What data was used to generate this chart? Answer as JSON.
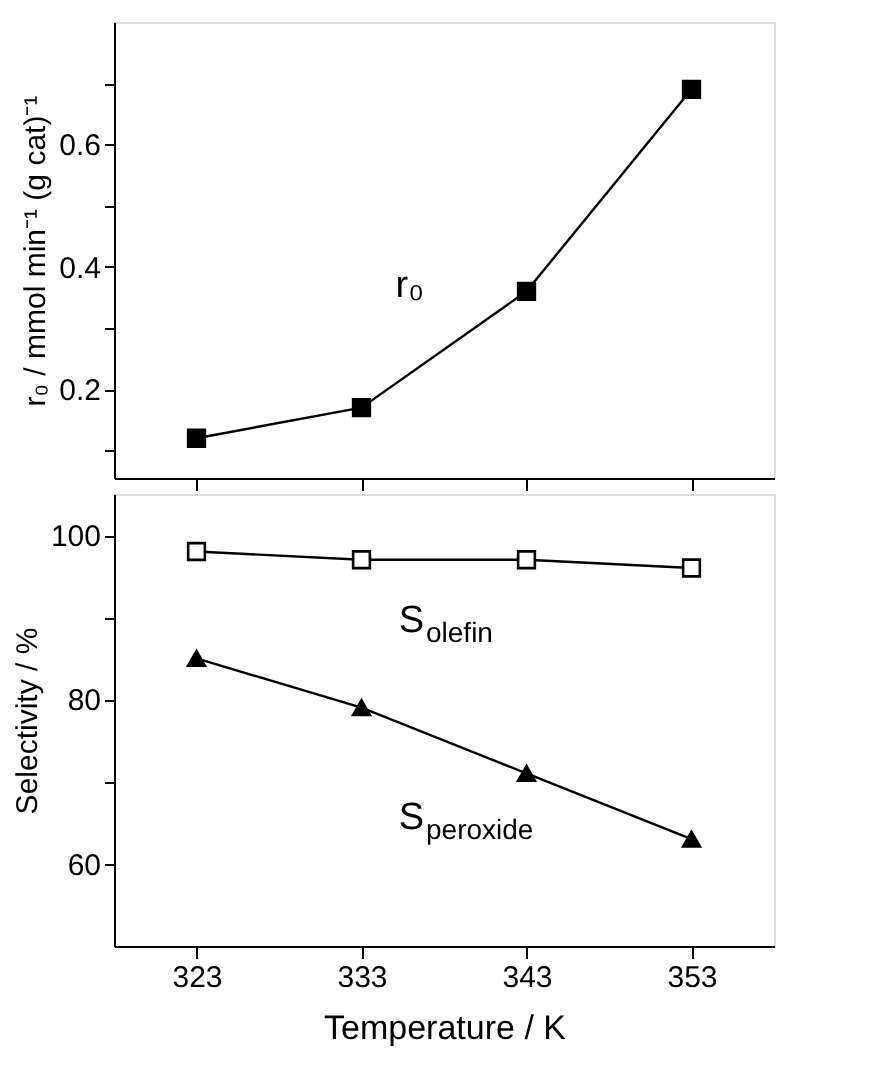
{
  "chart_data": [
    {
      "type": "line",
      "x": [
        323,
        333,
        343,
        353
      ],
      "ylabel": "r₀ / mmol min⁻¹ (g cat)⁻¹",
      "xlim": [
        318,
        358
      ],
      "ylim": [
        0.055,
        0.8
      ],
      "xticks": [
        323,
        333,
        343,
        353
      ],
      "yticks": [
        {
          "value": 0.1,
          "label": null
        },
        0.2,
        {
          "value": 0.3,
          "label": null
        },
        0.4,
        {
          "value": 0.5,
          "label": null
        },
        0.6,
        {
          "value": 0.7,
          "label": null
        }
      ],
      "tick_labels": "y",
      "series": [
        {
          "name": "r₀",
          "color": "#000000",
          "marker": "square",
          "values": [
            0.12,
            0.17,
            0.36,
            0.69
          ]
        }
      ]
    },
    {
      "type": "line",
      "x": [
        323,
        333,
        343,
        353
      ],
      "xlabel": "Temperature  /  K",
      "ylabel": "Selectivity  /  %",
      "xlim": [
        318,
        358
      ],
      "ylim": [
        50,
        105
      ],
      "xticks": [
        323,
        333,
        343,
        353
      ],
      "yticks": [
        60,
        {
          "value": 70,
          "label": null
        },
        80,
        {
          "value": 90,
          "label": null
        },
        100
      ],
      "series": [
        {
          "name": "S$_{olefin}$",
          "color": "#000000",
          "marker": "square",
          "values": [
            98,
            97,
            97,
            96
          ]
        },
        {
          "name": "S$_{peroxide}$",
          "color": "#000000",
          "marker": "triangle",
          "values": [
            85,
            79,
            71,
            63
          ]
        }
      ]
    }
  ]
}
